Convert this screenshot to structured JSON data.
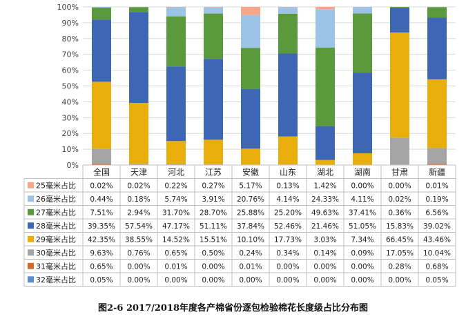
{
  "chart_data": {
    "type": "bar",
    "stacked": true,
    "normalized": true,
    "categories": [
      "全国",
      "天津",
      "河北",
      "江苏",
      "安徽",
      "山东",
      "湖北",
      "湖南",
      "甘肃",
      "新疆"
    ],
    "y_ticks": [
      "0%",
      "10%",
      "20%",
      "30%",
      "40%",
      "50%",
      "60%",
      "70%",
      "80%",
      "90%",
      "100%"
    ],
    "ylim": [
      0,
      100
    ],
    "grid": true,
    "legend": "table-below",
    "series": [
      {
        "name": "25毫米占比",
        "color": "#f4a58a",
        "values": [
          0.02,
          0.02,
          0.22,
          0.27,
          5.17,
          0.13,
          1.42,
          0.0,
          0.0,
          0.01
        ],
        "labels": [
          "0.02%",
          "0.02%",
          "0.22%",
          "0.27%",
          "5.17%",
          "0.13%",
          "1.42%",
          "0.00%",
          "0.00%",
          "0.01%"
        ]
      },
      {
        "name": "26毫米占比",
        "color": "#9dc3e6",
        "values": [
          0.44,
          0.18,
          5.74,
          3.91,
          20.76,
          4.14,
          24.33,
          4.11,
          0.02,
          0.19
        ],
        "labels": [
          "0.44%",
          "0.18%",
          "5.74%",
          "3.91%",
          "20.76%",
          "4.14%",
          "24.33%",
          "4.11%",
          "0.02%",
          "0.19%"
        ]
      },
      {
        "name": "27毫米占比",
        "color": "#5b9a3c",
        "values": [
          7.51,
          2.94,
          31.7,
          28.7,
          25.88,
          25.2,
          49.63,
          37.41,
          0.36,
          6.56
        ],
        "labels": [
          "7.51%",
          "2.94%",
          "31.70%",
          "28.70%",
          "25.88%",
          "25.20%",
          "49.63%",
          "37.41%",
          "0.36%",
          "6.56%"
        ]
      },
      {
        "name": "28毫米占比",
        "color": "#3d66b4",
        "values": [
          39.35,
          57.54,
          47.17,
          51.11,
          37.84,
          52.46,
          21.46,
          51.05,
          15.83,
          39.02
        ],
        "labels": [
          "39.35%",
          "57.54%",
          "47.17%",
          "51.11%",
          "37.84%",
          "52.46%",
          "21.46%",
          "51.05%",
          "15.83%",
          "39.02%"
        ]
      },
      {
        "name": "29毫米占比",
        "color": "#e8ae0c",
        "values": [
          42.35,
          38.55,
          14.52,
          15.51,
          10.1,
          17.73,
          3.03,
          7.34,
          66.45,
          43.46
        ],
        "labels": [
          "42.35%",
          "38.55%",
          "14.52%",
          "15.51%",
          "10.10%",
          "17.73%",
          "3.03%",
          "7.34%",
          "66.45%",
          "43.46%"
        ]
      },
      {
        "name": "30毫米占比",
        "color": "#a5a5a5",
        "values": [
          9.63,
          0.76,
          0.65,
          0.5,
          0.24,
          0.34,
          0.14,
          0.09,
          17.05,
          10.04
        ],
        "labels": [
          "9.63%",
          "0.76%",
          "0.65%",
          "0.50%",
          "0.24%",
          "0.34%",
          "0.14%",
          "0.09%",
          "17.05%",
          "10.04%"
        ]
      },
      {
        "name": "31毫米占比",
        "color": "#d6692a",
        "values": [
          0.65,
          0.0,
          0.01,
          0.0,
          0.01,
          0.0,
          0.0,
          0.0,
          0.28,
          0.68
        ],
        "labels": [
          "0.65%",
          "0.00%",
          "0.01%",
          "0.00%",
          "0.01%",
          "0.00%",
          "0.00%",
          "0.00%",
          "0.28%",
          "0.68%"
        ]
      },
      {
        "name": "32毫米占比",
        "color": "#5a8cc8",
        "values": [
          0.05,
          0.0,
          0.0,
          0.0,
          0.0,
          0.0,
          0.0,
          0.0,
          0.0,
          0.05
        ],
        "labels": [
          "0.05%",
          "0.00%",
          "0.00%",
          "0.00%",
          "0.00%",
          "0.00%",
          "0.00%",
          "0.00%",
          "0.00%",
          "0.05%"
        ]
      }
    ]
  },
  "caption": "图2-6 2017/2018年度各产棉省份逐包检验棉花长度级占比分布图"
}
